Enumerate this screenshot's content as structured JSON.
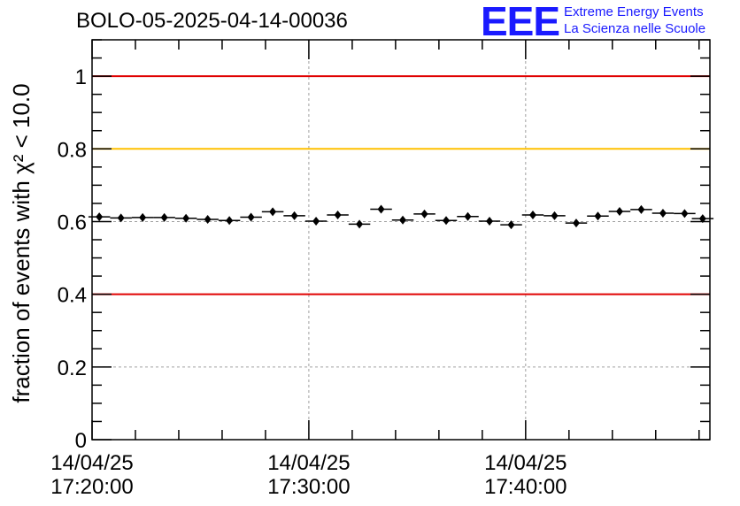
{
  "header": {
    "title": "BOLO-05-2025-04-14-00036",
    "logo": {
      "mark": "EEE",
      "line1": "Extreme Energy Events",
      "line2": "La Scienza nelle Scuole",
      "color": "#1a1aff"
    }
  },
  "chart_data": {
    "type": "scatter",
    "ylabel": "fraction of events with χ² < 10.0",
    "ylim": [
      0,
      1.1
    ],
    "yticks": [
      0,
      0.2,
      0.4,
      0.6,
      0.8,
      1
    ],
    "ytick_labels": [
      "0",
      "0.2",
      "0.4",
      "0.6",
      "0.8",
      "1"
    ],
    "xlim": [
      "2025-04-14 17:20:00",
      "2025-04-14 17:48:30"
    ],
    "xticks": [
      {
        "date": "14/04/25",
        "time": "17:20:00"
      },
      {
        "date": "14/04/25",
        "time": "17:30:00"
      },
      {
        "date": "14/04/25",
        "time": "17:40:00"
      }
    ],
    "grid": true,
    "reference_lines": [
      {
        "y": 1.0,
        "color": "#e00000"
      },
      {
        "y": 0.8,
        "color": "#ffc000"
      },
      {
        "y": 0.4,
        "color": "#e00000"
      }
    ],
    "series": [
      {
        "x": [
          "17:20:20",
          "17:21:20",
          "17:22:20",
          "17:23:20",
          "17:24:20",
          "17:25:20",
          "17:26:20",
          "17:27:20",
          "17:28:20",
          "17:29:20",
          "17:30:20",
          "17:31:20",
          "17:32:20",
          "17:33:20",
          "17:34:20",
          "17:35:20",
          "17:36:20",
          "17:37:20",
          "17:38:20",
          "17:39:20",
          "17:40:20",
          "17:41:20",
          "17:42:20",
          "17:43:20",
          "17:44:20",
          "17:45:20",
          "17:46:20",
          "17:47:20",
          "17:48:10"
        ],
        "values": [
          0.613,
          0.61,
          0.611,
          0.611,
          0.609,
          0.606,
          0.603,
          0.612,
          0.627,
          0.616,
          0.601,
          0.618,
          0.593,
          0.634,
          0.604,
          0.621,
          0.603,
          0.614,
          0.601,
          0.591,
          0.618,
          0.616,
          0.596,
          0.615,
          0.628,
          0.633,
          0.623,
          0.622,
          0.608
        ],
        "error": 0.006
      }
    ]
  }
}
